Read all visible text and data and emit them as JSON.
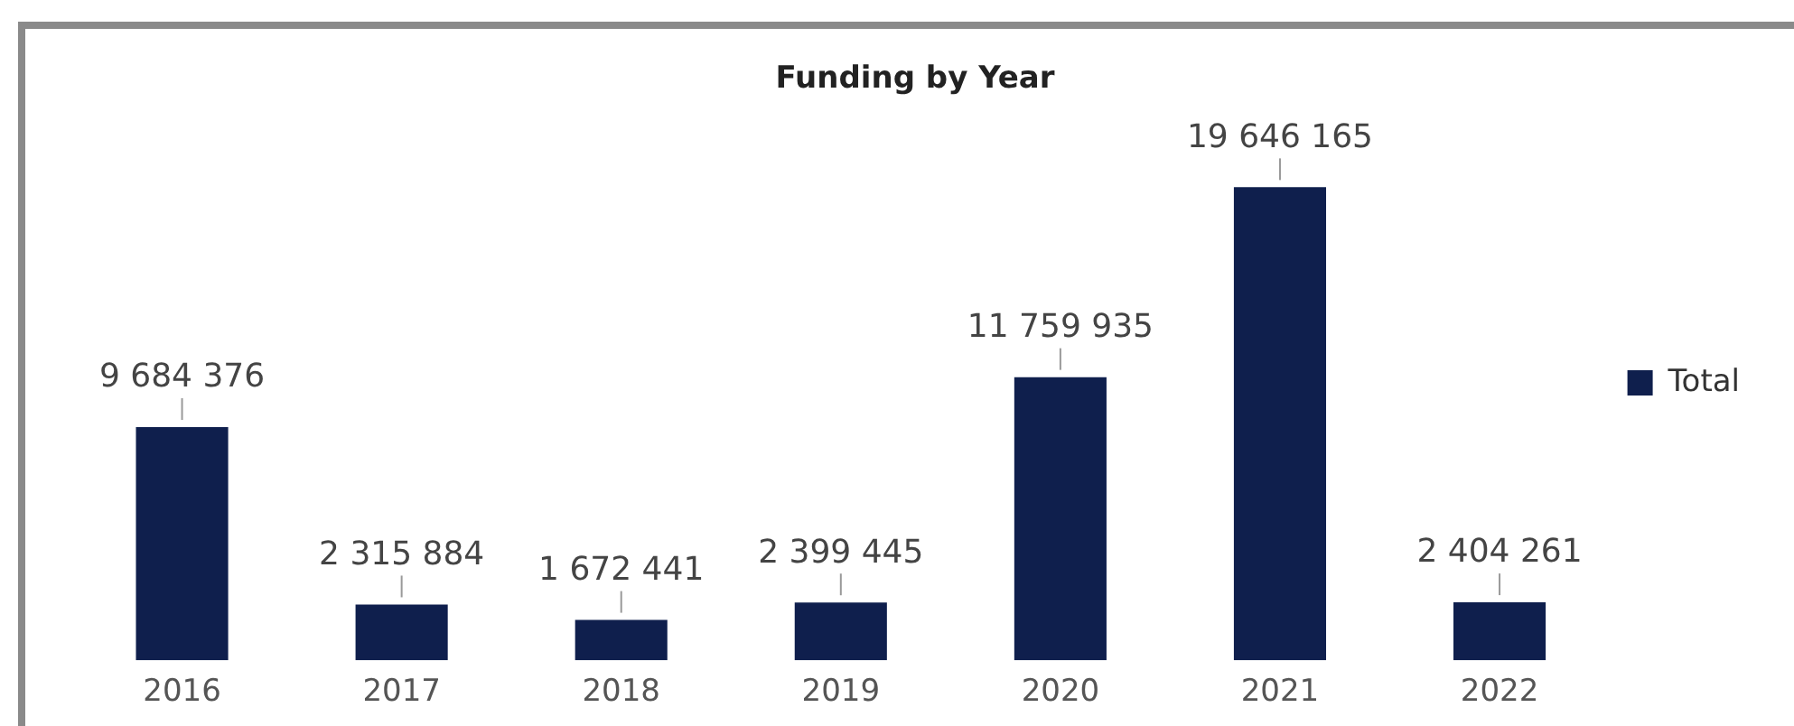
{
  "chart_data": {
    "type": "bar",
    "title": "Funding by Year",
    "categories": [
      "2016",
      "2017",
      "2018",
      "2019",
      "2020",
      "2021",
      "2022"
    ],
    "series": [
      {
        "name": "Total",
        "color": "#0f1f4d",
        "values": [
          9684376,
          2315884,
          1672441,
          2399445,
          11759935,
          19646165,
          2404261
        ],
        "value_labels": [
          "9 684 376",
          "2 315 884",
          "1 672 441",
          "2 399 445",
          "11 759 935",
          "19 646 165",
          "2 404 261"
        ]
      }
    ],
    "legend": "right",
    "grid": false
  }
}
